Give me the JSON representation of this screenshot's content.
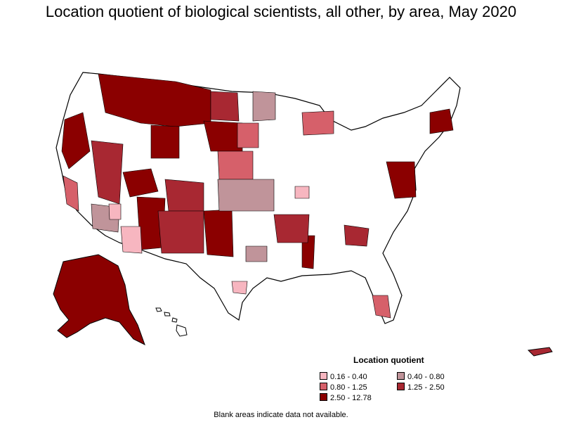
{
  "title": "Location quotient of biological scientists, all other, by area, May 2020",
  "legend": {
    "title": "Location quotient",
    "items": [
      {
        "label": "0.16 - 0.40",
        "color": "#f7b6c0"
      },
      {
        "label": "0.40 - 0.80",
        "color": "#c0949a"
      },
      {
        "label": "0.80 - 1.25",
        "color": "#d6606a"
      },
      {
        "label": "1.25 - 2.50",
        "color": "#a82832"
      },
      {
        "label": "2.50 - 12.78",
        "color": "#8b0000"
      }
    ]
  },
  "footnote": "Blank areas indicate data not available.",
  "colors": {
    "no_data": "#ffffff",
    "border": "#000000"
  }
}
